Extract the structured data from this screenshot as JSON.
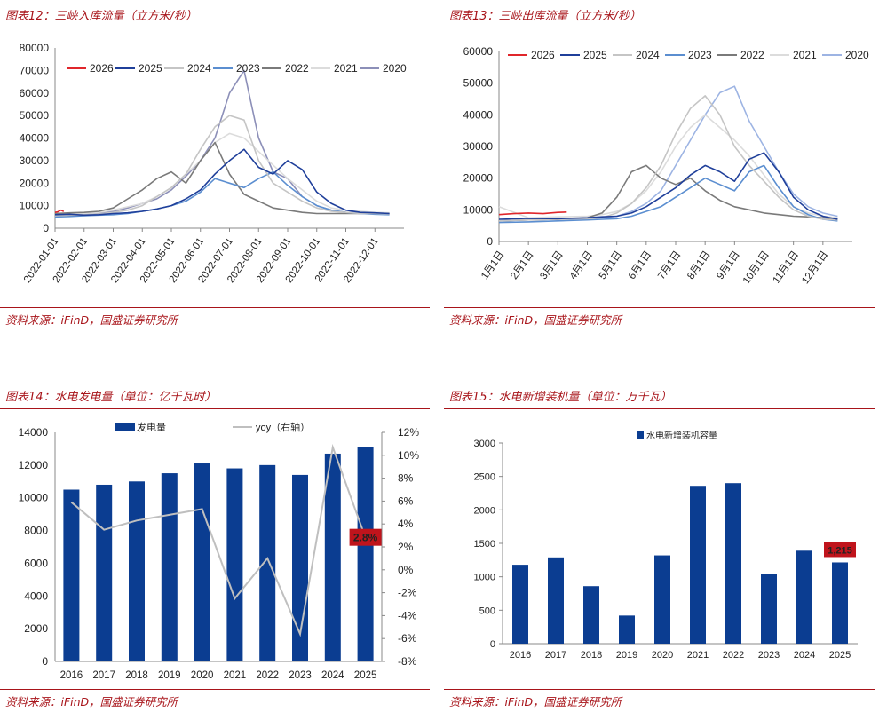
{
  "panels": [
    {
      "title": "图表12：三峡入库流量（立方米/秒）",
      "source": "资料来源：iFinD，国盛证券研究所"
    },
    {
      "title": "图表13：三峡出库流量（立方米/秒）",
      "source": "资料来源：iFinD，国盛证券研究所"
    },
    {
      "title": "图表14：水电发电量（单位：亿千瓦时）",
      "source": "资料来源：iFinD，国盛证券研究所"
    },
    {
      "title": "图表15：水电新增装机量（单位：万千瓦）",
      "source": "资料来源：iFinD，国盛证券研究所"
    }
  ],
  "chart_data": [
    {
      "type": "line",
      "title": "三峡入库流量（立方米/秒）",
      "x_ticks": [
        "2022-01-01",
        "2022-02-01",
        "2022-03-01",
        "2022-04-01",
        "2022-05-01",
        "2022-06-01",
        "2022-07-01",
        "2022-08-01",
        "2022-09-01",
        "2022-10-01",
        "2022-11-01",
        "2022-12-01"
      ],
      "y_ticks": [
        "0",
        "10000",
        "20000",
        "30000",
        "40000",
        "50000",
        "60000",
        "70000",
        "80000"
      ],
      "ylim": [
        0,
        80000
      ],
      "series": [
        {
          "name": "2026",
          "color": "#e0262b",
          "x": [
            0,
            0.1,
            0.2,
            0.3
          ],
          "values": [
            7000,
            7300,
            8000,
            7400
          ]
        },
        {
          "name": "2025",
          "color": "#1f3f9a",
          "x": [
            0,
            0.5,
            1,
            1.5,
            2,
            2.5,
            3,
            3.5,
            4,
            4.5,
            5,
            5.5,
            6,
            6.5,
            7,
            7.5,
            8,
            8.5,
            9,
            9.5,
            10,
            10.5,
            11,
            11.5
          ],
          "values": [
            6000,
            6200,
            5800,
            6000,
            6500,
            6800,
            7500,
            8500,
            10000,
            13000,
            17000,
            24000,
            30000,
            35000,
            27000,
            24000,
            30000,
            26000,
            16000,
            11000,
            8000,
            7000,
            6800,
            6500
          ]
        },
        {
          "name": "2024",
          "color": "#c5c5c5",
          "x": [
            0,
            0.5,
            1,
            1.5,
            2,
            2.5,
            3,
            3.5,
            4,
            4.5,
            5,
            5.5,
            6,
            6.5,
            7,
            7.5,
            8,
            8.5,
            9,
            9.5,
            10,
            10.5,
            11,
            11.5
          ],
          "values": [
            5500,
            5800,
            6000,
            6300,
            7000,
            8000,
            10000,
            14000,
            18000,
            24000,
            35000,
            45000,
            50000,
            48000,
            30000,
            20000,
            16000,
            12000,
            9000,
            7500,
            7000,
            6500,
            6500,
            6300
          ]
        },
        {
          "name": "2023",
          "color": "#5b8ed0",
          "x": [
            0,
            0.5,
            1,
            1.5,
            2,
            2.5,
            3,
            3.5,
            4,
            4.5,
            5,
            5.5,
            6,
            6.5,
            7,
            7.5,
            8,
            8.5,
            9,
            9.5,
            10,
            10.5,
            11,
            11.5
          ],
          "values": [
            5000,
            5200,
            5500,
            5800,
            6000,
            6500,
            7500,
            8500,
            10000,
            12000,
            16000,
            22000,
            20000,
            18000,
            22000,
            25000,
            19000,
            14000,
            10000,
            8000,
            7000,
            6500,
            6200,
            6000
          ]
        },
        {
          "name": "2022",
          "color": "#7a7a7a",
          "x": [
            0,
            0.5,
            1,
            1.5,
            2,
            2.5,
            3,
            3.5,
            4,
            4.5,
            5,
            5.5,
            6,
            6.5,
            7,
            7.5,
            8,
            8.5,
            9,
            9.5,
            10,
            10.5,
            11,
            11.5
          ],
          "values": [
            6500,
            6800,
            7000,
            7500,
            9000,
            13000,
            17000,
            22000,
            25000,
            20000,
            30000,
            38000,
            24000,
            15000,
            12000,
            9000,
            8000,
            7000,
            6500,
            6500,
            6500,
            6500,
            6500,
            6500
          ]
        },
        {
          "name": "2021",
          "color": "#dcdcdc",
          "x": [
            0,
            0.5,
            1,
            1.5,
            2,
            2.5,
            3,
            3.5,
            4,
            4.5,
            5,
            5.5,
            6,
            6.5,
            7,
            7.5,
            8,
            8.5,
            9,
            9.5,
            10,
            10.5,
            11,
            11.5
          ],
          "values": [
            6000,
            6200,
            6500,
            7000,
            8000,
            9500,
            11000,
            14000,
            18000,
            24000,
            30000,
            38000,
            42000,
            40000,
            34000,
            28000,
            22000,
            17000,
            12000,
            9000,
            8000,
            7500,
            7000,
            6800
          ]
        },
        {
          "name": "2020",
          "color": "#8c8fb8",
          "x": [
            0,
            0.5,
            1,
            1.5,
            2,
            2.5,
            3,
            3.5,
            4,
            4.5,
            5,
            5.5,
            6,
            6.5,
            7,
            7.5,
            8,
            8.5,
            9,
            9.5,
            10,
            10.5,
            11,
            11.5
          ],
          "values": [
            6000,
            6300,
            6500,
            6800,
            7500,
            9000,
            11000,
            13000,
            17000,
            23000,
            30000,
            40000,
            60000,
            70000,
            40000,
            25000,
            22000,
            14000,
            10000,
            8000,
            7000,
            6800,
            6500,
            6500
          ]
        }
      ]
    },
    {
      "type": "line",
      "title": "三峡出库流量（立方米/秒）",
      "x_ticks": [
        "1月1日",
        "2月1日",
        "3月1日",
        "4月1日",
        "5月1日",
        "6月1日",
        "7月1日",
        "8月1日",
        "9月1日",
        "10月1日",
        "11月1日",
        "12月1日"
      ],
      "y_ticks": [
        "0",
        "10000",
        "20000",
        "30000",
        "40000",
        "50000",
        "60000"
      ],
      "ylim": [
        0,
        60000
      ],
      "series": [
        {
          "name": "2026",
          "color": "#e0262b",
          "x": [
            0,
            0.5,
            1,
            1.5,
            2,
            2.3
          ],
          "values": [
            8500,
            8800,
            9000,
            8800,
            9200,
            9300
          ]
        },
        {
          "name": "2025",
          "color": "#1f3f9a",
          "x": [
            0,
            1,
            2,
            3,
            3.5,
            4,
            4.5,
            5,
            5.5,
            6,
            6.5,
            7,
            7.5,
            8,
            8.5,
            9,
            9.5,
            10,
            10.5,
            11,
            11.5
          ],
          "values": [
            7000,
            7300,
            7200,
            7500,
            7800,
            8000,
            9000,
            11000,
            14000,
            17000,
            21000,
            24000,
            22000,
            19000,
            26000,
            28000,
            22000,
            14000,
            10000,
            8000,
            7000
          ]
        },
        {
          "name": "2024",
          "color": "#c5c5c5",
          "x": [
            0,
            1,
            2,
            3,
            3.5,
            4,
            4.5,
            5,
            5.5,
            6,
            6.5,
            7,
            7.5,
            8,
            8.5,
            9,
            9.5,
            10,
            10.5,
            11,
            11.5
          ],
          "values": [
            6500,
            6800,
            7000,
            7200,
            7500,
            9000,
            12000,
            17000,
            24000,
            34000,
            42000,
            46000,
            40000,
            30000,
            24000,
            19000,
            14000,
            10000,
            8000,
            7000,
            6800
          ]
        },
        {
          "name": "2023",
          "color": "#5b8ed0",
          "x": [
            0,
            1,
            2,
            3,
            3.5,
            4,
            4.5,
            5,
            5.5,
            6,
            6.5,
            7,
            7.5,
            8,
            8.5,
            9,
            9.5,
            10,
            10.5,
            11,
            11.5
          ],
          "values": [
            6000,
            6200,
            6500,
            6800,
            7000,
            7200,
            8000,
            9500,
            11000,
            14000,
            17000,
            20000,
            18000,
            16000,
            22000,
            24000,
            17000,
            11000,
            8500,
            7000,
            6500
          ]
        },
        {
          "name": "2022",
          "color": "#7a7a7a",
          "x": [
            0,
            1,
            2,
            3,
            3.5,
            4,
            4.5,
            5,
            5.5,
            6,
            6.5,
            7,
            7.5,
            8,
            8.5,
            9,
            9.5,
            10,
            10.5,
            11,
            11.5
          ],
          "values": [
            6500,
            6800,
            7000,
            7500,
            9000,
            14000,
            22000,
            24000,
            20000,
            18000,
            20000,
            16000,
            13000,
            11000,
            10000,
            9000,
            8500,
            8000,
            7800,
            7500,
            7200
          ]
        },
        {
          "name": "2021",
          "color": "#dcdcdc",
          "x": [
            0,
            1,
            2,
            3,
            3.5,
            4,
            4.5,
            5,
            5.5,
            6,
            6.5,
            7,
            7.5,
            8,
            8.5,
            9,
            9.5,
            10,
            10.5,
            11,
            11.5
          ],
          "values": [
            11000,
            7500,
            7800,
            8000,
            8500,
            9500,
            12000,
            16000,
            22000,
            30000,
            36000,
            40000,
            36000,
            32000,
            27000,
            21000,
            15000,
            11000,
            9000,
            8000,
            7500
          ]
        },
        {
          "name": "2020",
          "color": "#9db4e3",
          "x": [
            0,
            1,
            2,
            3,
            3.5,
            4,
            4.5,
            5,
            5.5,
            6,
            6.5,
            7,
            7.5,
            8,
            8.5,
            9,
            9.5,
            10,
            10.5,
            11,
            11.5
          ],
          "values": [
            6500,
            6800,
            7000,
            7200,
            7500,
            8000,
            9500,
            12000,
            16000,
            24000,
            32000,
            40000,
            47000,
            49000,
            38000,
            30000,
            22000,
            15000,
            11000,
            9000,
            8000
          ]
        }
      ]
    },
    {
      "type": "bar",
      "title": "水电发电量（单位：亿千瓦时）",
      "categories": [
        "2016",
        "2017",
        "2018",
        "2019",
        "2020",
        "2021",
        "2022",
        "2023",
        "2024",
        "2025"
      ],
      "series": [
        {
          "name": "发电量",
          "axis": "left",
          "color": "#0b3d91",
          "values": [
            10500,
            10800,
            11000,
            11500,
            12100,
            11800,
            12000,
            11400,
            12700,
            13100
          ]
        },
        {
          "name": "yoy（右轴）",
          "axis": "right",
          "type": "line",
          "color": "#bfbfbf",
          "unit": "%",
          "values": [
            5.9,
            3.5,
            4.3,
            4.8,
            5.3,
            -2.5,
            1.0,
            -5.6,
            10.7,
            2.8
          ]
        }
      ],
      "y_ticks": [
        "0",
        "2000",
        "4000",
        "6000",
        "8000",
        "10000",
        "12000",
        "14000"
      ],
      "ylim": [
        0,
        14000
      ],
      "y2_ticks": [
        "-8%",
        "-6%",
        "-4%",
        "-2%",
        "0%",
        "2%",
        "4%",
        "6%",
        "8%",
        "10%",
        "12%"
      ],
      "y2lim": [
        -8,
        12
      ],
      "annotation": "2.8%"
    },
    {
      "type": "bar",
      "title": "水电新增装机量（单位：万千瓦）",
      "categories": [
        "2016",
        "2017",
        "2018",
        "2019",
        "2020",
        "2021",
        "2022",
        "2023",
        "2024",
        "2025"
      ],
      "series": [
        {
          "name": "水电新增装机容量",
          "color": "#0b3d91",
          "values": [
            1180,
            1290,
            860,
            420,
            1320,
            2360,
            2400,
            1040,
            1390,
            1215
          ]
        }
      ],
      "y_ticks": [
        "0",
        "500",
        "1000",
        "1500",
        "2000",
        "2500",
        "3000"
      ],
      "ylim": [
        0,
        3000
      ],
      "annotation": "1,215"
    }
  ]
}
